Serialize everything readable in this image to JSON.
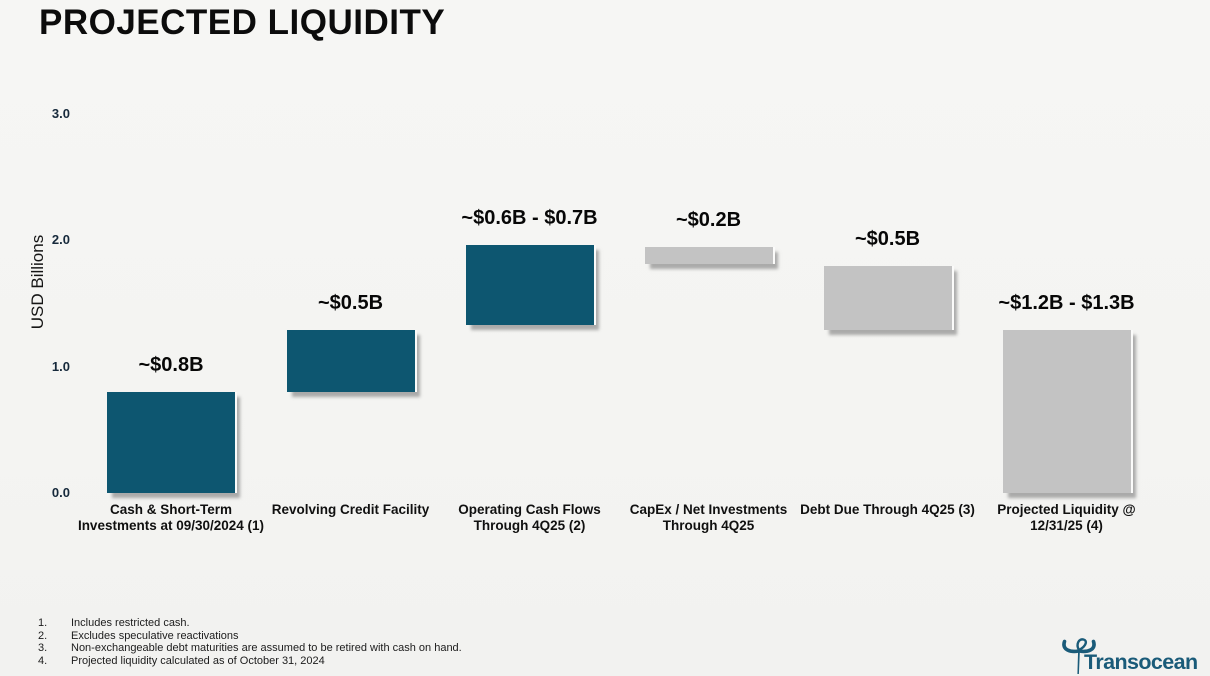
{
  "slide": {
    "title": "PROJECTED LIQUIDITY"
  },
  "colors": {
    "teal": "#0d5670",
    "gray": "#c3c3c3",
    "logo": "#1a5b79",
    "background": "#f4f4f2"
  },
  "chart_data": {
    "type": "bar",
    "subtype": "waterfall",
    "title": "PROJECTED LIQUIDITY",
    "xlabel": "",
    "ylabel": "USD Billions",
    "ylim": [
      0,
      3.0
    ],
    "yticks": [
      "3.0",
      "2.0",
      "1.0",
      "0.0"
    ],
    "grid": false,
    "legend": "none",
    "bars": [
      {
        "category": "Cash & Short-Term Investments at 09/30/2024 (1)",
        "label": "~$0.8B",
        "start": 0,
        "end": 0.8,
        "color_key": "teal"
      },
      {
        "category": "Revolving Credit Facility",
        "label": "~$0.5B",
        "start": 0.8,
        "end": 1.29,
        "color_key": "teal"
      },
      {
        "category": "Operating Cash Flows Through 4Q25 (2)",
        "label": "~$0.6B - $0.7B",
        "start": 1.33,
        "end": 1.96,
        "color_key": "teal"
      },
      {
        "category": "CapEx / Net Investments Through 4Q25",
        "label": "~$0.2B",
        "start": 1.81,
        "end": 1.95,
        "color_key": "gray"
      },
      {
        "category": "Debt Due Through 4Q25 (3)",
        "label": "~$0.5B",
        "start": 1.29,
        "end": 1.8,
        "color_key": "gray"
      },
      {
        "category": "Projected Liquidity @ 12/31/25 (4)",
        "label": "~$1.2B - $1.3B",
        "start": 0,
        "end": 1.29,
        "color_key": "gray"
      }
    ]
  },
  "footnotes": [
    {
      "num": "1.",
      "text": "Includes restricted cash."
    },
    {
      "num": "2.",
      "text": "Excludes speculative reactivations"
    },
    {
      "num": "3.",
      "text": "Non-exchangeable debt maturities are assumed to be retired with cash on hand."
    },
    {
      "num": "4.",
      "text": "Projected liquidity calculated as of October 31, 2024"
    }
  ],
  "logo": {
    "text": "Transocean"
  }
}
